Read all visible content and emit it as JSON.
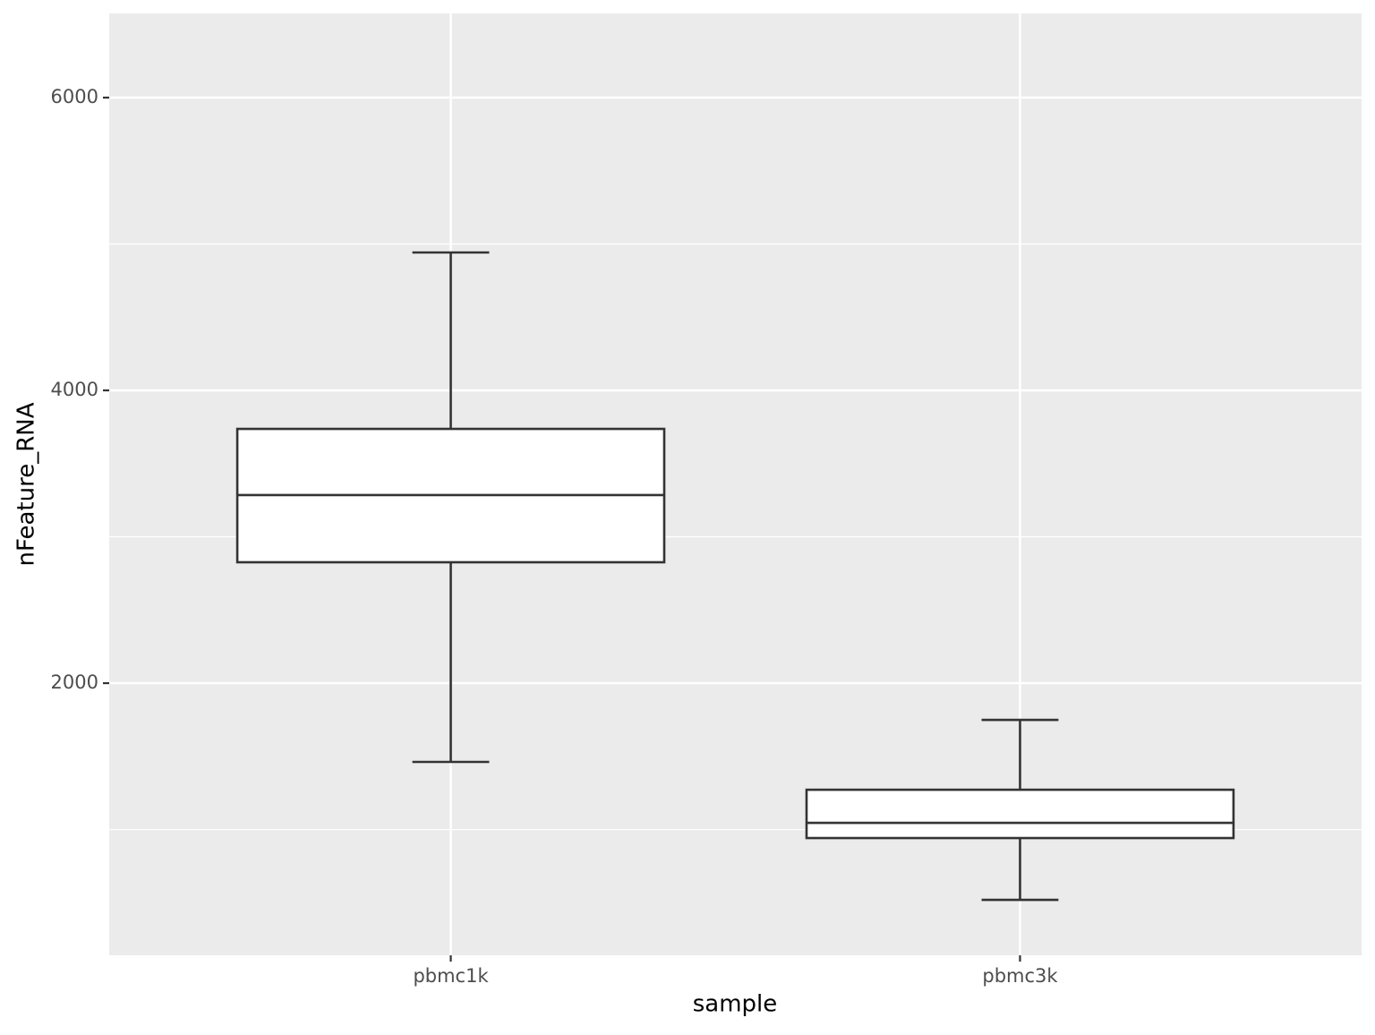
{
  "chart_data": {
    "type": "boxplot",
    "x_label": "sample",
    "y_label": "nFeature_RNA",
    "categories": [
      "pbmc1k",
      "pbmc3k"
    ],
    "boxes": [
      {
        "min": 1462,
        "q1": 2826,
        "median": 3285,
        "q3": 3737,
        "max": 4942
      },
      {
        "min": 520,
        "q1": 942,
        "median": 1046,
        "q3": 1272,
        "max": 1749
      }
    ],
    "box_color": "#ffffff",
    "line_color": "#333333",
    "ylim": [
      141,
      6575
    ],
    "yticks": [
      2000,
      4000,
      6000
    ],
    "minor_yticks": [
      1000,
      3000,
      5000
    ],
    "grid": true
  }
}
